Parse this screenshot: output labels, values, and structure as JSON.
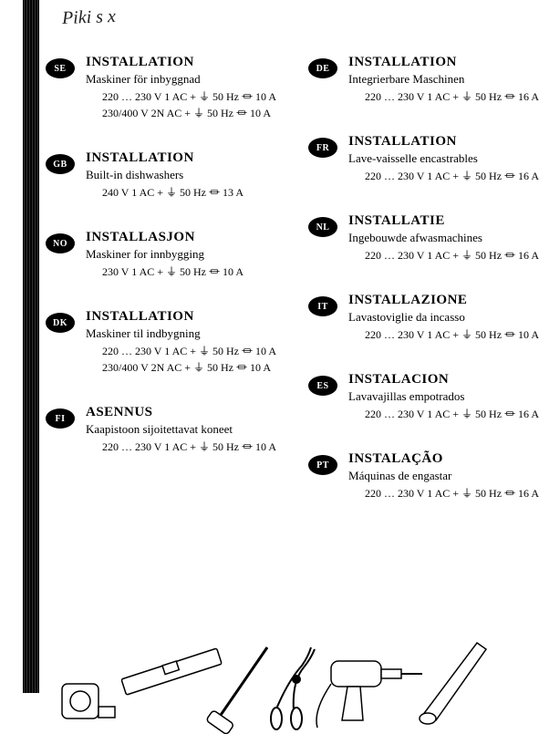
{
  "handwritten": "Piki s x",
  "symbols": {
    "ground": "⏚",
    "fuse": "⏛"
  },
  "left_column": [
    {
      "code": "SE",
      "heading": "INSTALLATION",
      "subtitle": "Maskiner för inbyggnad",
      "specs": [
        "220 … 230 V  1 AC + ⏚ 50 Hz  ⏛ 10 A",
        "230/400 V  2N AC + ⏚ 50 Hz  ⏛ 10 A"
      ]
    },
    {
      "code": "GB",
      "heading": "INSTALLATION",
      "subtitle": "Built-in dishwashers",
      "specs": [
        "240 V  1 AC + ⏚ 50 Hz  ⏛ 13 A"
      ]
    },
    {
      "code": "NO",
      "heading": "INSTALLASJON",
      "subtitle": "Maskiner for innbygging",
      "specs": [
        "230 V  1 AC + ⏚ 50 Hz  ⏛ 10 A"
      ]
    },
    {
      "code": "DK",
      "heading": "INSTALLATION",
      "subtitle": "Maskiner til indbygning",
      "specs": [
        "220 … 230 V  1 AC + ⏚ 50 Hz  ⏛ 10 A",
        "230/400 V  2N AC + ⏚ 50 Hz  ⏛ 10 A"
      ]
    },
    {
      "code": "FI",
      "heading": "ASENNUS",
      "subtitle": "Kaapistoon sijoitettavat koneet",
      "specs": [
        "220 … 230 V  1 AC + ⏚ 50 Hz  ⏛ 10 A"
      ]
    }
  ],
  "right_column": [
    {
      "code": "DE",
      "heading": "INSTALLATION",
      "subtitle": "Integrierbare Maschinen",
      "specs": [
        "220 … 230 V  1 AC + ⏚ 50 Hz  ⏛ 16 A"
      ]
    },
    {
      "code": "FR",
      "heading": "INSTALLATION",
      "subtitle": "Lave-vaisselle encastrables",
      "specs": [
        "220 … 230 V  1 AC + ⏚ 50 Hz  ⏛ 16 A"
      ]
    },
    {
      "code": "NL",
      "heading": "INSTALLATIE",
      "subtitle": "Ingebouwde afwasmachines",
      "specs": [
        "220 … 230 V  1 AC + ⏚ 50 Hz  ⏛ 16 A"
      ]
    },
    {
      "code": "IT",
      "heading": "INSTALLAZIONE",
      "subtitle": "Lavastoviglie da incasso",
      "specs": [
        "220 … 230 V  1 AC + ⏚ 50 Hz  ⏛ 10 A"
      ]
    },
    {
      "code": "ES",
      "heading": "INSTALACION",
      "subtitle": "Lavavajillas empotrados",
      "specs": [
        "220 … 230 V  1 AC + ⏚ 50 Hz  ⏛ 16 A"
      ]
    },
    {
      "code": "PT",
      "heading": "INSTALAÇÃO",
      "subtitle": "Máquinas de engastar",
      "specs": [
        "220 … 230 V  1 AC + ⏚ 50 Hz  ⏛ 16 A"
      ]
    }
  ]
}
